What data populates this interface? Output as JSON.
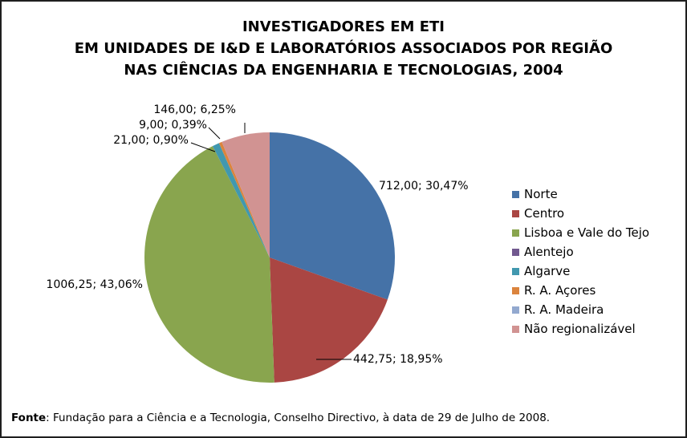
{
  "chart_data": {
    "type": "pie",
    "title_lines": [
      "INVESTIGADORES EM ETI",
      "EM UNIDADES DE I&D E LABORATÓRIOS ASSOCIADOS POR REGIÃO",
      "NAS CIÊNCIAS DA ENGENHARIA E TECNOLOGIAS, 2004"
    ],
    "legend_position": "right",
    "slices": [
      {
        "name": "Norte",
        "value": 712.0,
        "label": "712,00; 30,47%",
        "color": "#4572A7"
      },
      {
        "name": "Centro",
        "value": 442.75,
        "label": "442,75; 18,95%",
        "color": "#AA4643"
      },
      {
        "name": "Lisboa e Vale do Tejo",
        "value": 1006.25,
        "label": "1006,25; 43,06%",
        "color": "#89A54E"
      },
      {
        "name": "Alentejo",
        "value": 0,
        "label": "",
        "color": "#71588F"
      },
      {
        "name": "Algarve",
        "value": 21.0,
        "label": "21,00; 0,90%",
        "color": "#4198AF"
      },
      {
        "name": "R. A. Açores",
        "value": 9.0,
        "label": "9,00; 0,39%",
        "color": "#DB843D"
      },
      {
        "name": "R. A. Madeira",
        "value": 0,
        "label": "",
        "color": "#93A9CF"
      },
      {
        "name": "Não regionalizável",
        "value": 146.0,
        "label": "146,00; 6,25%",
        "color": "#D19392"
      }
    ]
  },
  "source": {
    "label": "Fonte",
    "text": ": Fundação para a Ciência e a Tecnologia, Conselho Directivo, à data de 29 de Julho de 2008."
  }
}
